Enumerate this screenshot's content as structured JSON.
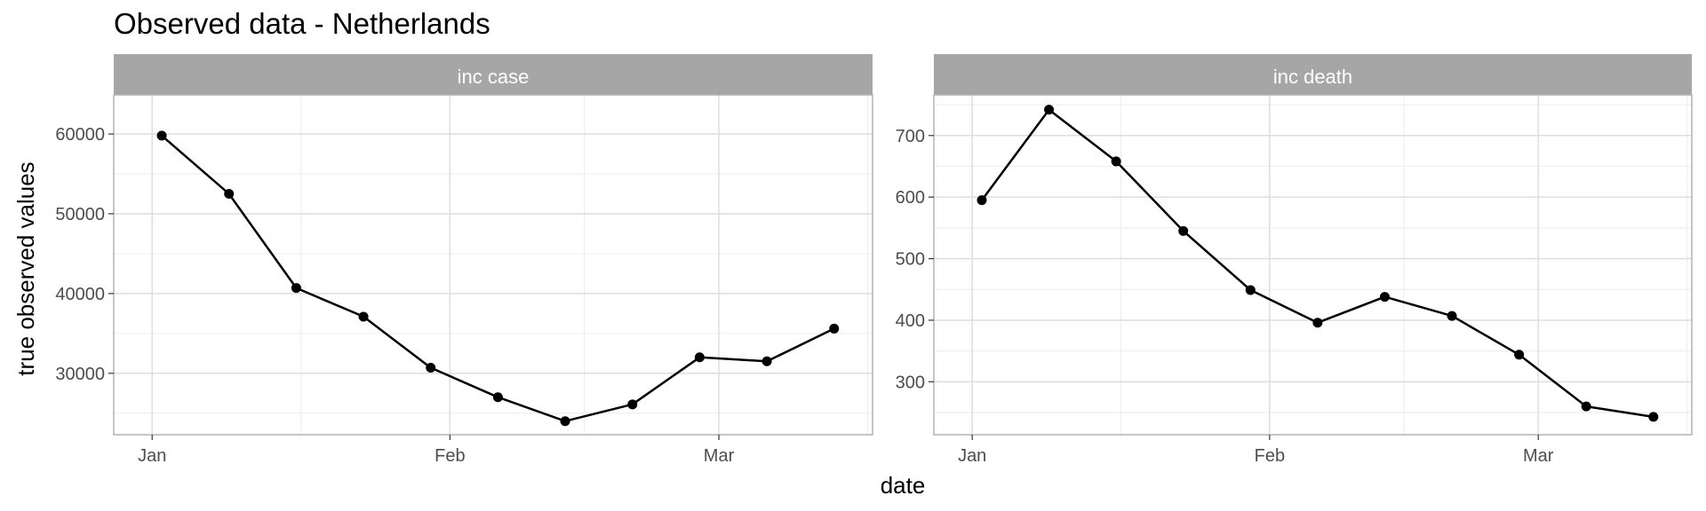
{
  "chart_data": {
    "type": "line",
    "title": "Observed data - Netherlands",
    "xlabel": "date",
    "ylabel": "true observed values",
    "x": [
      "2021-01-02",
      "2021-01-09",
      "2021-01-16",
      "2021-01-23",
      "2021-01-30",
      "2021-02-06",
      "2021-02-13",
      "2021-02-20",
      "2021-02-27",
      "2021-03-06",
      "2021-03-13"
    ],
    "xticks": [
      {
        "date": "2021-01-01",
        "label": "Jan"
      },
      {
        "date": "2021-02-01",
        "label": "Feb"
      },
      {
        "date": "2021-03-01",
        "label": "Mar"
      }
    ],
    "grid": true,
    "colors": {
      "strip": "#a6a6a6",
      "strip_text": "#ffffff",
      "grid_major": "#dedede",
      "grid_minor": "#efefef",
      "panel_border": "#b3b3b3",
      "series": "#000000",
      "axis_text": "#4d4d4d",
      "title": "#000000"
    },
    "panels": [
      {
        "name": "inc case",
        "values": [
          59800,
          52500,
          40700,
          37100,
          30700,
          27000,
          24000,
          26100,
          32000,
          31500,
          35600
        ],
        "ylim": [
          22300,
          64900
        ],
        "yticks": [
          30000,
          40000,
          50000,
          60000
        ],
        "ytick_labels": [
          "30000",
          "40000",
          "50000",
          "60000"
        ]
      },
      {
        "name": "inc death",
        "values": [
          595,
          742,
          658,
          545,
          449,
          396,
          438,
          407,
          344,
          260,
          243
        ],
        "ylim": [
          214,
          766
        ],
        "yticks": [
          300,
          400,
          500,
          600,
          700
        ],
        "ytick_labels": [
          "300",
          "400",
          "500",
          "600",
          "700"
        ]
      }
    ]
  }
}
